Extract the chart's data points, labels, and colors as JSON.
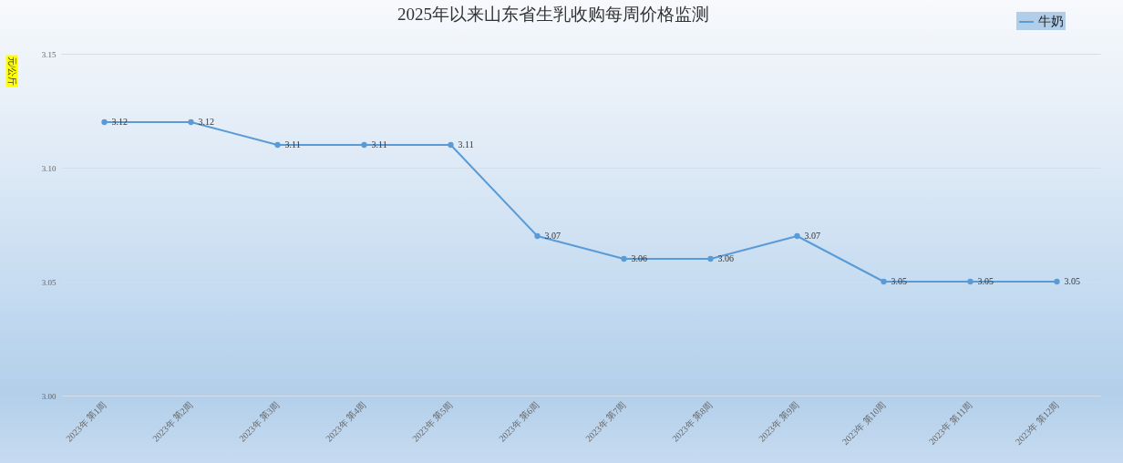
{
  "chart_data": {
    "type": "line",
    "title": "2025年以来山东省生乳收购每周价格监测",
    "ylabel": "元/公斤",
    "categories": [
      "2023年 第1周",
      "2023年 第2周",
      "2023年 第3周",
      "2023年 第4周",
      "2023年 第5周",
      "2023年 第6周",
      "2023年 第7周",
      "2023年 第8周",
      "2023年 第9周",
      "2023年 第10周",
      "2023年 第11周",
      "2023年 第12周"
    ],
    "series": [
      {
        "name": "牛奶",
        "color": "#5b9bd5",
        "values": [
          3.12,
          3.12,
          3.11,
          3.11,
          3.11,
          3.07,
          3.06,
          3.06,
          3.07,
          3.05,
          3.05,
          3.05
        ]
      }
    ],
    "ylim": [
      3.0,
      3.15
    ],
    "yticks": [
      {
        "value": 3.0,
        "label": "3.00"
      },
      3.05,
      {
        "value": 3.1,
        "label": "3.10"
      },
      3.15
    ],
    "grid": "y",
    "legend": "top right",
    "marker": "circle",
    "line_style": "solid",
    "data_labels": true
  }
}
